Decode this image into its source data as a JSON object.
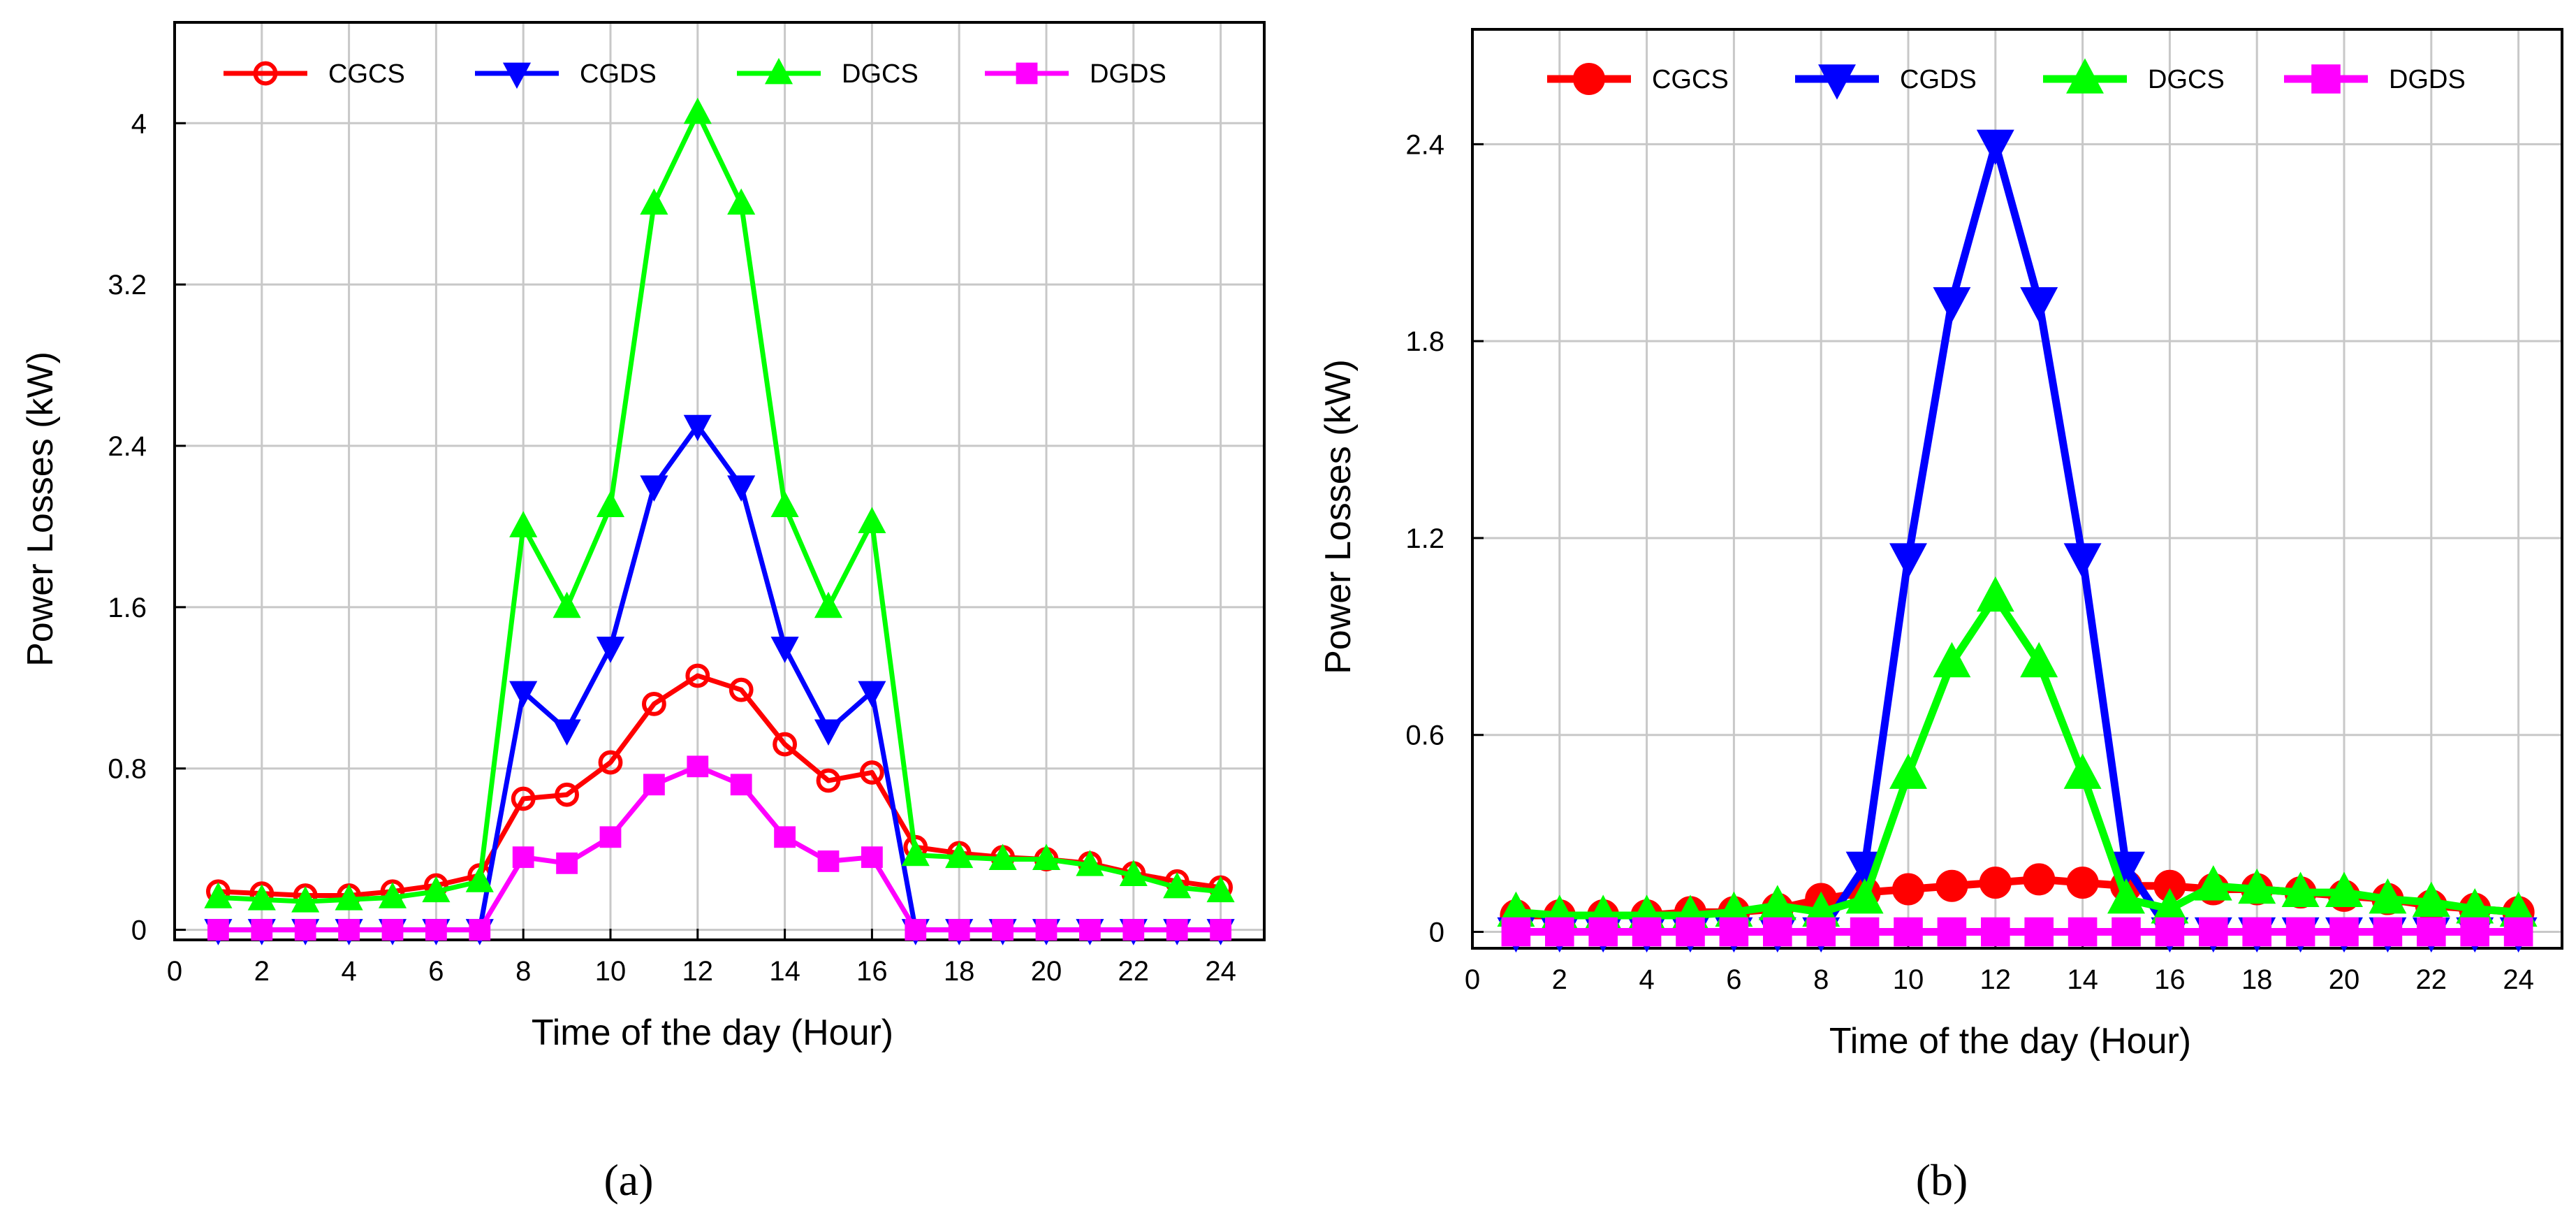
{
  "figure": {
    "panel_labels": [
      "(a)",
      "(b)"
    ]
  },
  "chart_data": [
    {
      "type": "line",
      "panel": "(a)",
      "xlabel": "Time of the day (Hour)",
      "ylabel": "Power Losses (kW)",
      "xlim": [
        0,
        25
      ],
      "ylim": [
        -0.05,
        4.5
      ],
      "xticks": [
        0,
        2,
        4,
        6,
        8,
        10,
        12,
        14,
        16,
        18,
        20,
        22,
        24
      ],
      "yticks": [
        0,
        0.8,
        1.6,
        2.4,
        3.2,
        4
      ],
      "ytick_labels": [
        "0",
        "0.8",
        "1.6",
        "2.4",
        "3.2",
        "4"
      ],
      "grid": true,
      "legend_position": "top",
      "x": [
        1,
        2,
        3,
        4,
        5,
        6,
        7,
        8,
        9,
        10,
        11,
        12,
        13,
        14,
        15,
        16,
        17,
        18,
        19,
        20,
        21,
        22,
        23,
        24
      ],
      "series": [
        {
          "name": "CGCS",
          "color": "#ff0000",
          "marker": "circle-open",
          "values": [
            0.19,
            0.18,
            0.17,
            0.17,
            0.19,
            0.22,
            0.27,
            0.65,
            0.67,
            0.83,
            1.12,
            1.26,
            1.19,
            0.92,
            0.74,
            0.78,
            0.41,
            0.38,
            0.36,
            0.35,
            0.33,
            0.28,
            0.24,
            0.21
          ]
        },
        {
          "name": "CGDS",
          "color": "#0000ff",
          "marker": "triangle-down",
          "values": [
            0,
            0,
            0,
            0,
            0,
            0,
            0,
            1.18,
            0.99,
            1.4,
            2.2,
            2.5,
            2.2,
            1.4,
            0.99,
            1.18,
            0,
            0,
            0,
            0,
            0,
            0,
            0,
            0
          ]
        },
        {
          "name": "DGCS",
          "color": "#00ff00",
          "marker": "triangle-up",
          "values": [
            0.16,
            0.15,
            0.14,
            0.15,
            0.16,
            0.19,
            0.24,
            2.0,
            1.6,
            2.1,
            3.6,
            4.05,
            3.6,
            2.1,
            1.6,
            2.02,
            0.37,
            0.36,
            0.35,
            0.35,
            0.32,
            0.27,
            0.21,
            0.19
          ]
        },
        {
          "name": "DGDS",
          "color": "#ff00ff",
          "marker": "square",
          "values": [
            0,
            0,
            0,
            0,
            0,
            0,
            0,
            0.36,
            0.33,
            0.46,
            0.72,
            0.81,
            0.72,
            0.46,
            0.34,
            0.36,
            0,
            0,
            0,
            0,
            0,
            0,
            0,
            0
          ]
        }
      ]
    },
    {
      "type": "line",
      "panel": "(b)",
      "xlabel": "Time of the day (Hour)",
      "ylabel": "Power Losses (kW)",
      "xlim": [
        0,
        25
      ],
      "ylim": [
        -0.05,
        2.75
      ],
      "xticks": [
        0,
        2,
        4,
        6,
        8,
        10,
        12,
        14,
        16,
        18,
        20,
        22,
        24
      ],
      "yticks": [
        0,
        0.6,
        1.2,
        1.8,
        2.4
      ],
      "ytick_labels": [
        "0",
        "0.6",
        "1.2",
        "1.8",
        "2.4"
      ],
      "grid": true,
      "legend_position": "top",
      "x": [
        1,
        2,
        3,
        4,
        5,
        6,
        7,
        8,
        9,
        10,
        11,
        12,
        13,
        14,
        15,
        16,
        17,
        18,
        19,
        20,
        21,
        22,
        23,
        24
      ],
      "series": [
        {
          "name": "CGCS",
          "color": "#ff0000",
          "marker": "circle-filled",
          "values": [
            0.05,
            0.05,
            0.05,
            0.05,
            0.06,
            0.06,
            0.07,
            0.1,
            0.12,
            0.13,
            0.14,
            0.15,
            0.16,
            0.15,
            0.14,
            0.14,
            0.13,
            0.13,
            0.12,
            0.11,
            0.1,
            0.08,
            0.07,
            0.06
          ]
        },
        {
          "name": "CGDS",
          "color": "#0000ff",
          "marker": "triangle-down",
          "values": [
            0,
            0,
            0,
            0,
            0,
            0,
            0,
            0,
            0.2,
            1.14,
            1.92,
            2.4,
            1.92,
            1.14,
            0.2,
            0,
            0,
            0,
            0,
            0,
            0,
            0,
            0,
            0
          ]
        },
        {
          "name": "DGCS",
          "color": "#00ff00",
          "marker": "triangle-up",
          "values": [
            0.06,
            0.05,
            0.05,
            0.05,
            0.05,
            0.06,
            0.08,
            0.06,
            0.1,
            0.48,
            0.82,
            1.02,
            0.82,
            0.48,
            0.1,
            0.07,
            0.14,
            0.13,
            0.12,
            0.12,
            0.1,
            0.09,
            0.07,
            0.06
          ]
        },
        {
          "name": "DGDS",
          "color": "#ff00ff",
          "marker": "square",
          "values": [
            0,
            0,
            0,
            0,
            0,
            0,
            0,
            0,
            0,
            0,
            0,
            0,
            0,
            0,
            0,
            0,
            0,
            0,
            0,
            0,
            0,
            0,
            0,
            0
          ]
        }
      ]
    }
  ]
}
